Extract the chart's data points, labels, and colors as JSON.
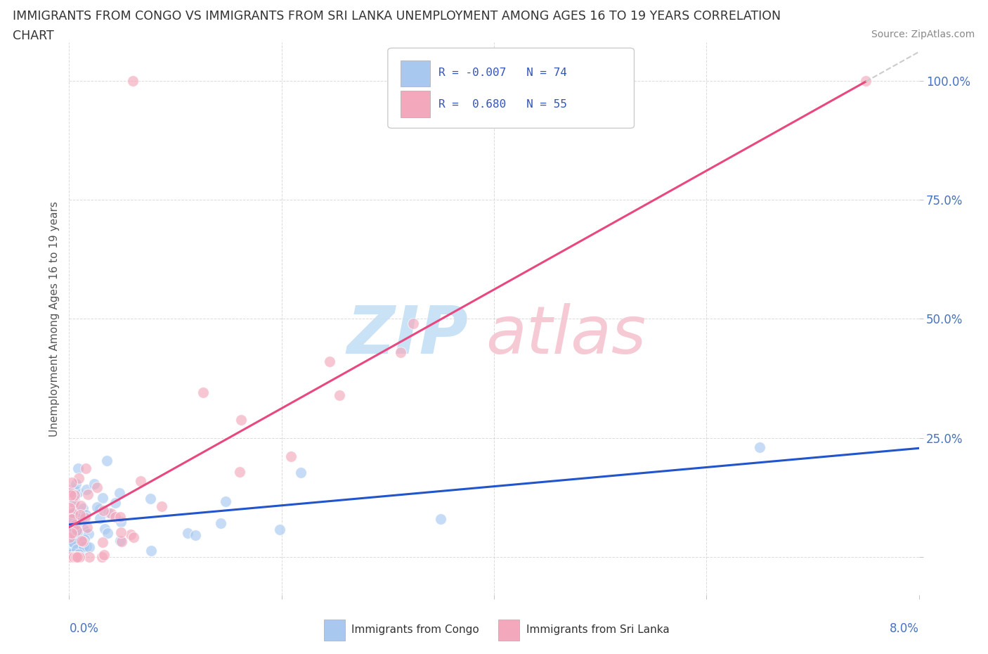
{
  "title_line1": "IMMIGRANTS FROM CONGO VS IMMIGRANTS FROM SRI LANKA UNEMPLOYMENT AMONG AGES 16 TO 19 YEARS CORRELATION",
  "title_line2": "CHART",
  "source": "Source: ZipAtlas.com",
  "ylabel": "Unemployment Among Ages 16 to 19 years",
  "xlim": [
    0.0,
    8.0
  ],
  "ylim": [
    -8.0,
    108.0
  ],
  "congo_color": "#a8c8f0",
  "srilanka_color": "#f4a8bc",
  "congo_line_color": "#2255cc",
  "srilanka_line_color": "#e84880",
  "background_color": "#ffffff",
  "grid_color": "#cccccc",
  "watermark_zip_color": "#c5dff5",
  "watermark_atlas_color": "#f5c5d0"
}
